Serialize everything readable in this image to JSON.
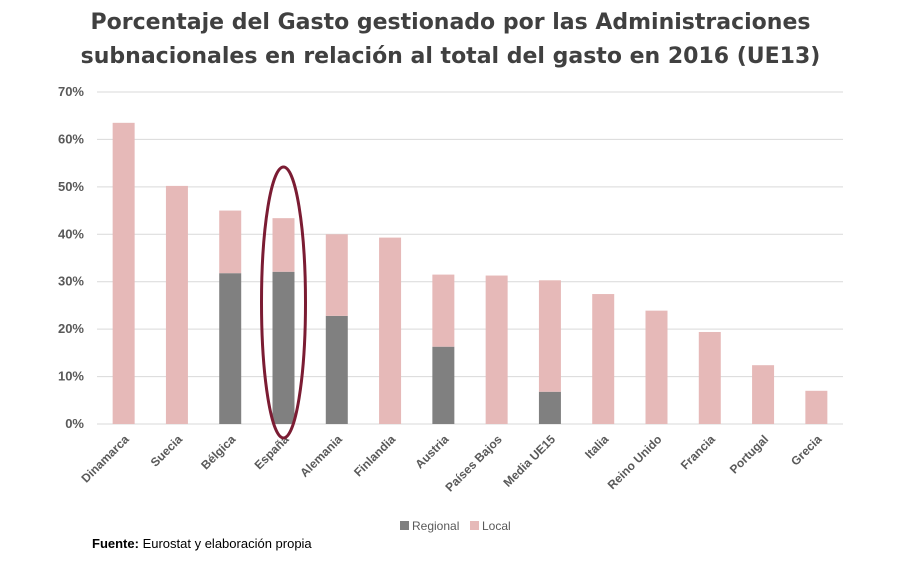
{
  "title_lines": [
    "Porcentaje del Gasto gestionado por las Administraciones",
    "subnacionales en relación al total del gasto en 2016 (UE13)"
  ],
  "source": {
    "label": "Fuente:",
    "text": " Eurostat y elaboración propia"
  },
  "colors": {
    "regional": "#808080",
    "local": "#e6b9b8",
    "highlight": "#7b1c33",
    "grid": "#d9d9d9",
    "text": "#595959"
  },
  "chart_data": {
    "type": "bar",
    "stacked": true,
    "title": "Porcentaje del Gasto gestionado por las Administraciones subnacionales en relación al total del gasto en 2016 (UE13)",
    "xlabel": "",
    "ylabel": "",
    "ylim": [
      0,
      70
    ],
    "y_ticks": [
      "0%",
      "10%",
      "20%",
      "30%",
      "40%",
      "50%",
      "60%",
      "70%"
    ],
    "y_tick_values": [
      0,
      10,
      20,
      30,
      40,
      50,
      60,
      70
    ],
    "grid": true,
    "legend_position": "bottom",
    "categories": [
      "Dinamarca",
      "Suecia",
      "Bélgica",
      "España",
      "Alemania",
      "Finlandia",
      "Austria",
      "Países Bajos",
      "Media UE15",
      "Italia",
      "Reino Unido",
      "Francia",
      "Portugal",
      "Grecia"
    ],
    "series": [
      {
        "name": "Regional",
        "values": [
          0,
          0,
          31.8,
          32.1,
          22.8,
          0,
          16.3,
          0,
          6.8,
          0,
          0,
          0,
          0,
          0
        ]
      },
      {
        "name": "Local",
        "values": [
          63.5,
          50.2,
          13.2,
          11.3,
          17.2,
          39.3,
          15.2,
          31.3,
          23.5,
          27.4,
          23.9,
          19.4,
          12.4,
          7.0
        ]
      }
    ],
    "highlighted_category": "España"
  }
}
